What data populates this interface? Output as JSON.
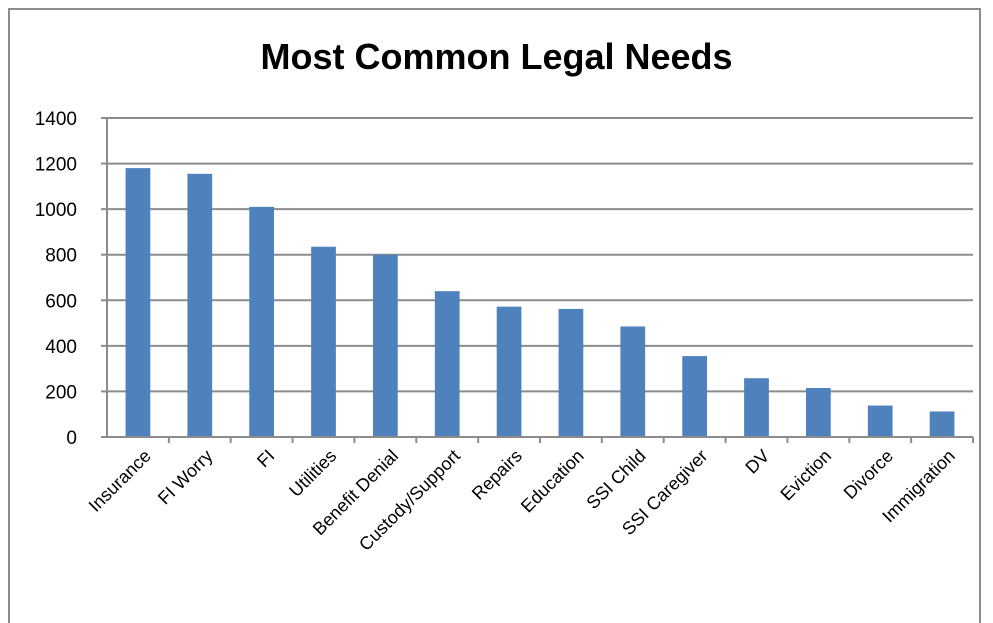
{
  "chart_data": {
    "type": "bar",
    "title": "Most Common Legal Needs",
    "xlabel": "",
    "ylabel": "",
    "ylim": [
      0,
      1400
    ],
    "yticks": [
      0,
      200,
      400,
      600,
      800,
      1000,
      1200,
      1400
    ],
    "grid": true,
    "legend": "none",
    "categories": [
      "Insurance",
      "FI Worry",
      "FI",
      "Utilities",
      "Benefit Denial",
      "Custody/Support",
      "Repairs",
      "Education",
      "SSI Child",
      "SSI Caregiver",
      "DV",
      "Eviction",
      "Divorce",
      "Immigration"
    ],
    "values": [
      1180,
      1155,
      1010,
      835,
      800,
      640,
      572,
      562,
      485,
      355,
      258,
      215,
      138,
      112
    ],
    "colors": {
      "bar": "#4f81bd",
      "grid": "#8c8c8c",
      "axis": "#8c8c8c",
      "frame": "#8c8c8c"
    }
  }
}
